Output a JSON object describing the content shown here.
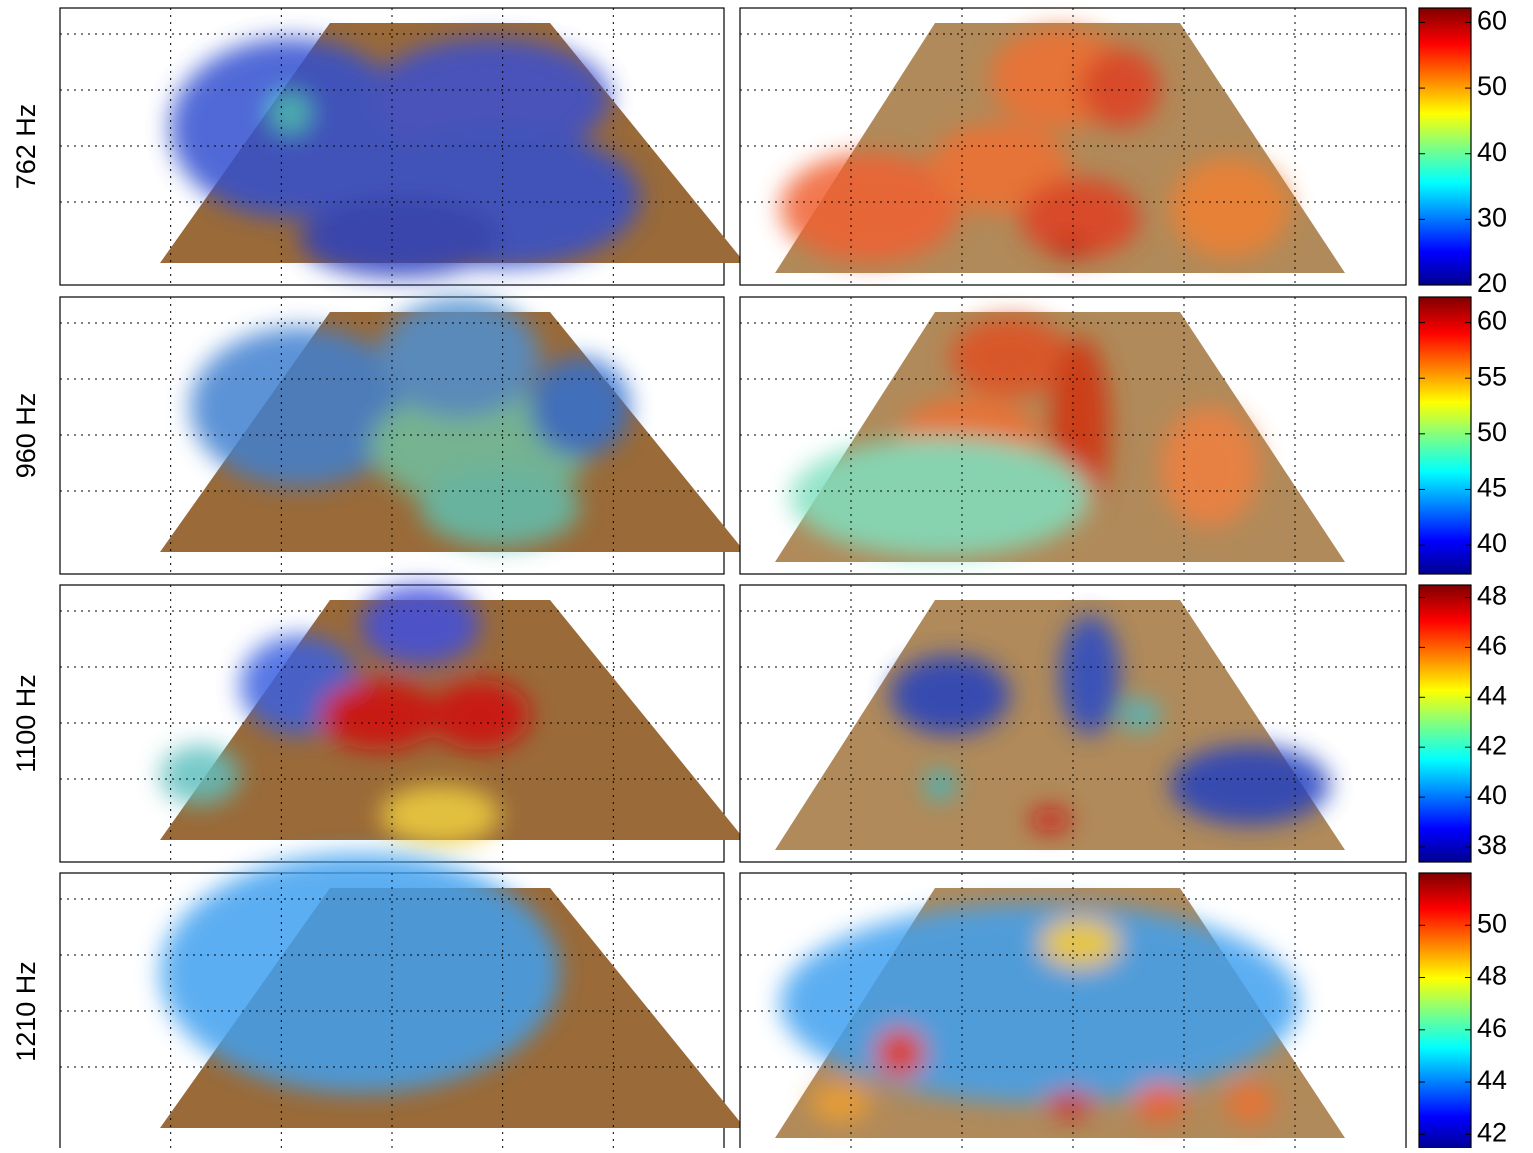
{
  "chart_data": [
    {
      "type": "heatmap",
      "ylabel": "762 Hz",
      "colormap": "jet",
      "ylim": [
        20,
        62.2
      ],
      "yticks": [
        20,
        30,
        40,
        50,
        60
      ]
    },
    {
      "type": "heatmap",
      "ylabel": "960 Hz",
      "colormap": "jet",
      "ylim": [
        37.4,
        62.3
      ],
      "yticks": [
        40,
        45,
        50,
        55,
        60
      ]
    },
    {
      "type": "heatmap",
      "ylabel": "1100 Hz",
      "colormap": "jet",
      "ylim": [
        37.4,
        48.5
      ],
      "yticks": [
        38,
        40,
        42,
        44,
        46,
        48
      ]
    },
    {
      "type": "heatmap",
      "ylabel": "1210 Hz",
      "colormap": "jet",
      "ylim": [
        41.4,
        52
      ],
      "yticks": [
        42,
        44,
        46,
        48,
        50
      ]
    }
  ]
}
